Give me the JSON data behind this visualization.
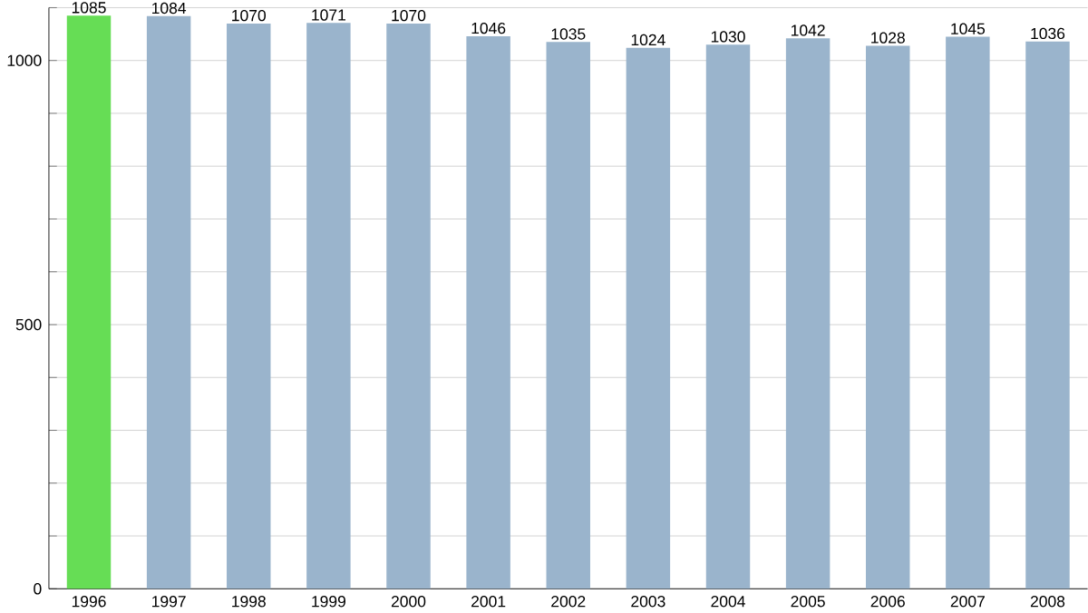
{
  "chart_data": {
    "type": "bar",
    "categories": [
      "1996",
      "1997",
      "1998",
      "1999",
      "2000",
      "2001",
      "2002",
      "2003",
      "2004",
      "2005",
      "2006",
      "2007",
      "2008"
    ],
    "values": [
      1085,
      1084,
      1070,
      1071,
      1070,
      1046,
      1035,
      1024,
      1030,
      1042,
      1028,
      1045,
      1036
    ],
    "colors": [
      "#66dd55",
      "#9ab4cc",
      "#9ab4cc",
      "#9ab4cc",
      "#9ab4cc",
      "#9ab4cc",
      "#9ab4cc",
      "#9ab4cc",
      "#9ab4cc",
      "#9ab4cc",
      "#9ab4cc",
      "#9ab4cc",
      "#9ab4cc"
    ],
    "ylim": [
      0,
      1100
    ],
    "yticks": [
      0,
      {
        "value": 100,
        "label": null
      },
      {
        "value": 200,
        "label": null
      },
      {
        "value": 300,
        "label": null
      },
      {
        "value": 400,
        "label": null
      },
      500,
      {
        "value": 600,
        "label": null
      },
      {
        "value": 700,
        "label": null
      },
      {
        "value": 800,
        "label": null
      },
      {
        "value": 900,
        "label": null
      },
      1000,
      {
        "value": 1100,
        "label": null
      }
    ],
    "grid": "y",
    "data_labels": true
  }
}
